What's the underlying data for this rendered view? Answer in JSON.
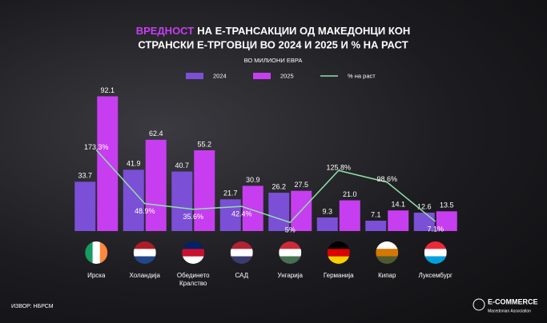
{
  "chart_data": {
    "type": "bar",
    "title_parts": [
      "ВРЕДНОСТ",
      "НА Е-ТРАНСАКЦИИ ОД МАКЕДОНЦИ КОН",
      "СТРАНСКИ Е-ТРГОВЦИ ВО 2024 И 2025 И % НА РАСТ"
    ],
    "subtitle": "ВО МИЛИОНИ ЕВРА",
    "categories": [
      "Ирска",
      "Холандија",
      "Обединето Кралство",
      "САД",
      "Унгарија",
      "Германија",
      "Кипар",
      "Луксембург"
    ],
    "series": [
      {
        "name": "2024",
        "color": "#7b4fd6",
        "values": [
          33.7,
          41.9,
          40.7,
          21.7,
          26.2,
          9.3,
          7.1,
          12.6
        ]
      },
      {
        "name": "2025",
        "color": "#c63ef0",
        "values": [
          92.1,
          62.4,
          55.2,
          30.9,
          27.5,
          21.0,
          14.1,
          13.5
        ],
        "value_labels": [
          "92.1",
          "62.4",
          "55.2",
          "30.9",
          "27.5",
          "21.0",
          "14.1",
          "13.5"
        ]
      },
      {
        "name": "% на раст",
        "type": "line",
        "axis": "y2",
        "color": "#8fe0a8",
        "values": [
          173.3,
          48.9,
          35.6,
          42.4,
          5,
          125.8,
          98.6,
          7.1
        ],
        "value_labels": [
          "173.3%",
          "48.9%",
          "35.6%",
          "42.4%",
          "5%",
          "125.8%",
          "98.6%",
          "7.1%"
        ]
      }
    ],
    "ylim": [
      0,
      100
    ],
    "y2lim": [
      -15,
      325
    ],
    "source": "ИЗВОР: НБРСМ",
    "logo": {
      "name": "E-COMMERCE",
      "tagline": "Macedonian Association"
    }
  }
}
